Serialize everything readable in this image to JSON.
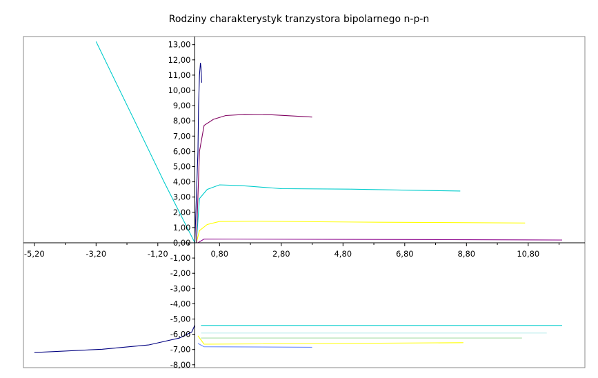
{
  "chart_data": {
    "type": "line",
    "title": "Rodziny charakterystyk tranzystora bipolarnego n-p-n",
    "xlabel": "",
    "ylabel": "",
    "xlim": [
      -5.4,
      12.0
    ],
    "ylim": [
      -8.0,
      13.2
    ],
    "x_ticks": [
      {
        "value": -5.2,
        "label": "-5,20"
      },
      {
        "value": -3.2,
        "label": "-3,20"
      },
      {
        "value": -1.2,
        "label": "-1,20"
      },
      {
        "value": 0.8,
        "label": "0,80"
      },
      {
        "value": 2.8,
        "label": "2,80"
      },
      {
        "value": 4.8,
        "label": "4,80"
      },
      {
        "value": 6.8,
        "label": "6,80"
      },
      {
        "value": 8.8,
        "label": "8,80"
      },
      {
        "value": 10.8,
        "label": "10,80"
      }
    ],
    "y_ticks": [
      {
        "value": 13,
        "label": "13,00"
      },
      {
        "value": 12,
        "label": "12,00"
      },
      {
        "value": 11,
        "label": "11,00"
      },
      {
        "value": 10,
        "label": "10,00"
      },
      {
        "value": 9,
        "label": "9,00"
      },
      {
        "value": 8,
        "label": "8,00"
      },
      {
        "value": 7,
        "label": "7,00"
      },
      {
        "value": 6,
        "label": "6,00"
      },
      {
        "value": 5,
        "label": "5,00"
      },
      {
        "value": 4,
        "label": "4,00"
      },
      {
        "value": 3,
        "label": "3,00"
      },
      {
        "value": 2,
        "label": "2,00"
      },
      {
        "value": 1,
        "label": "1,00"
      },
      {
        "value": 0,
        "label": "0,00"
      },
      {
        "value": -1,
        "label": "-1,00"
      },
      {
        "value": -2,
        "label": "-2,00"
      },
      {
        "value": -3,
        "label": "-3,00"
      },
      {
        "value": -4,
        "label": "-4,00"
      },
      {
        "value": -5,
        "label": "-5,00"
      },
      {
        "value": -6,
        "label": "-6,00"
      },
      {
        "value": -7,
        "label": "-7,00"
      },
      {
        "value": -8,
        "label": "-8,00"
      }
    ],
    "grid": false,
    "legend": "none",
    "series": [
      {
        "color": "#8b008b",
        "x": [
          0.1,
          0.3,
          5.0,
          11.9
        ],
        "y": [
          0.0,
          0.25,
          0.22,
          0.18
        ]
      },
      {
        "color": "#ffff00",
        "x": [
          0.05,
          0.15,
          0.4,
          0.8,
          2.0,
          4.0,
          6.0,
          8.0,
          10.7
        ],
        "y": [
          0.0,
          0.8,
          1.2,
          1.4,
          1.42,
          1.38,
          1.35,
          1.33,
          1.3
        ]
      },
      {
        "color": "#00cccc",
        "x": [
          0.05,
          0.15,
          0.4,
          0.8,
          1.5,
          2.8,
          5.0,
          7.0,
          8.6
        ],
        "y": [
          0.0,
          2.9,
          3.5,
          3.8,
          3.75,
          3.55,
          3.52,
          3.45,
          3.4
        ]
      },
      {
        "color": "#800060",
        "x": [
          0.05,
          0.15,
          0.3,
          0.6,
          1.0,
          1.6,
          2.5,
          3.8
        ],
        "y": [
          0.0,
          6.0,
          7.7,
          8.1,
          8.35,
          8.42,
          8.4,
          8.25
        ]
      },
      {
        "color": "#00cccc",
        "x": [
          -3.2,
          -2.0,
          -1.0,
          -0.3,
          0.0
        ],
        "y": [
          13.2,
          8.2,
          4.0,
          1.2,
          0.0
        ]
      },
      {
        "color": "#000080",
        "x": [
          0.0,
          0.05,
          0.1,
          0.12,
          0.15,
          0.18,
          0.2,
          0.22
        ],
        "y": [
          0.0,
          3.0,
          6.0,
          9.0,
          11.0,
          11.8,
          11.5,
          10.5
        ]
      },
      {
        "color": "#00cccc",
        "x": [
          0.2,
          11.9
        ],
        "y": [
          -5.42,
          -5.42
        ]
      },
      {
        "color": "#bbeeee",
        "x": [
          0.2,
          11.4
        ],
        "y": [
          -5.92,
          -5.92
        ]
      },
      {
        "color": "#aaddaa",
        "x": [
          0.2,
          10.6
        ],
        "y": [
          -6.25,
          -6.25
        ]
      },
      {
        "color": "#ffff00",
        "x": [
          0.1,
          0.3,
          8.7
        ],
        "y": [
          -6.1,
          -6.65,
          -6.55
        ]
      },
      {
        "color": "#6688ff",
        "x": [
          0.1,
          0.3,
          3.8
        ],
        "y": [
          -6.6,
          -6.82,
          -6.85
        ]
      },
      {
        "color": "#000080",
        "x": [
          -5.2,
          -3.0,
          -1.5,
          -0.5,
          -0.1,
          0.0
        ],
        "y": [
          -7.2,
          -6.98,
          -6.7,
          -6.25,
          -5.85,
          -5.4
        ]
      }
    ]
  }
}
